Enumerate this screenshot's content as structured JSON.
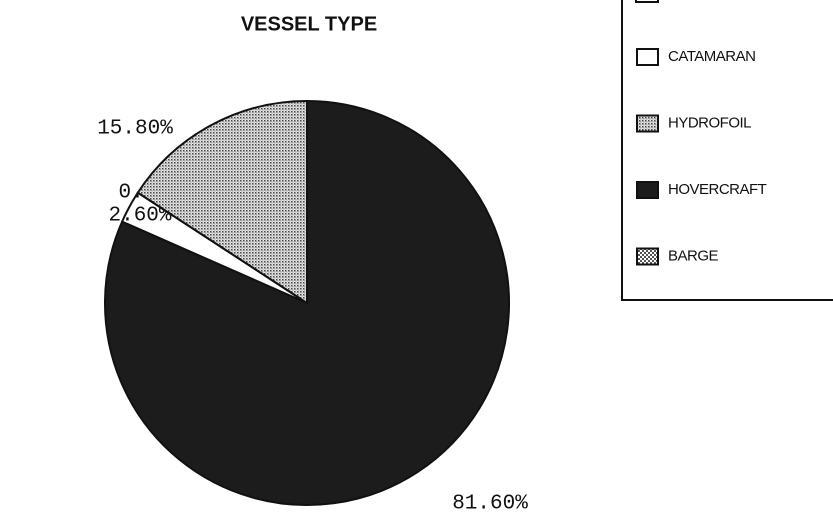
{
  "chart_data": {
    "type": "pie",
    "title": "VESSEL TYPE",
    "categories": [
      "CATAMARAN",
      "HYDROFOIL",
      "HOVERCRAFT",
      "BARGE"
    ],
    "values": [
      2.6,
      15.8,
      81.6,
      0
    ],
    "value_labels": [
      "2.60%",
      "15.80%",
      "81.60%",
      "0.00%"
    ],
    "colors": [
      "#ffffff",
      "#b8b8b8",
      "#1c1c1c",
      "#cfcfcf"
    ]
  }
}
